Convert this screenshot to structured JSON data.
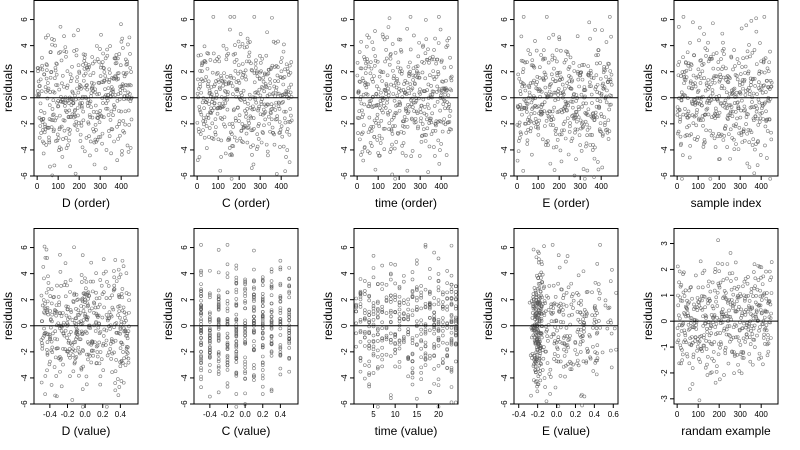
{
  "chart_data": [
    {
      "type": "scatter",
      "xlabel": "D (order)",
      "ylabel": "residuals",
      "xlim": [
        -15,
        480
      ],
      "ylim": [
        -6,
        7.5
      ],
      "xticks": [
        0,
        100,
        200,
        300,
        400
      ],
      "xtick_labels": [
        "0",
        "100",
        "200",
        "300",
        "400"
      ],
      "yticks": [
        -6,
        -4,
        -2,
        0,
        2,
        4,
        6
      ],
      "ytick_labels": [
        "-6",
        "-4",
        "-2",
        "0",
        "2",
        "4",
        "6"
      ],
      "reference_line_y": 0,
      "n_points": 450,
      "x_pattern": "index",
      "y_sd": 2.3,
      "seed": 11
    },
    {
      "type": "scatter",
      "xlabel": "C (order)",
      "ylabel": "residuals",
      "xlim": [
        -15,
        480
      ],
      "ylim": [
        -6,
        7.5
      ],
      "xticks": [
        0,
        100,
        200,
        300,
        400
      ],
      "xtick_labels": [
        "0",
        "100",
        "200",
        "300",
        "400"
      ],
      "yticks": [
        -6,
        -4,
        -2,
        0,
        2,
        4,
        6
      ],
      "ytick_labels": [
        "-6",
        "-4",
        "-2",
        "0",
        "2",
        "4",
        "6"
      ],
      "reference_line_y": 0,
      "n_points": 450,
      "x_pattern": "index",
      "y_sd": 2.3,
      "seed": 12
    },
    {
      "type": "scatter",
      "xlabel": "time (order)",
      "ylabel": "residuals",
      "xlim": [
        -15,
        480
      ],
      "ylim": [
        -6,
        7.5
      ],
      "xticks": [
        0,
        100,
        200,
        300,
        400
      ],
      "xtick_labels": [
        "0",
        "100",
        "200",
        "300",
        "400"
      ],
      "yticks": [
        -6,
        -4,
        -2,
        0,
        2,
        4,
        6
      ],
      "ytick_labels": [
        "-6",
        "-4",
        "-2",
        "0",
        "2",
        "4",
        "6"
      ],
      "reference_line_y": 0,
      "n_points": 450,
      "x_pattern": "index",
      "y_sd": 2.3,
      "seed": 13
    },
    {
      "type": "scatter",
      "xlabel": "E (order)",
      "ylabel": "residuals",
      "xlim": [
        -15,
        480
      ],
      "ylim": [
        -6,
        7.5
      ],
      "xticks": [
        0,
        100,
        200,
        300,
        400
      ],
      "xtick_labels": [
        "0",
        "100",
        "200",
        "300",
        "400"
      ],
      "yticks": [
        -6,
        -4,
        -2,
        0,
        2,
        4,
        6
      ],
      "ytick_labels": [
        "-6",
        "-4",
        "-2",
        "0",
        "2",
        "4",
        "6"
      ],
      "reference_line_y": 0,
      "n_points": 450,
      "x_pattern": "index",
      "y_sd": 2.3,
      "seed": 14
    },
    {
      "type": "scatter",
      "xlabel": "sample index",
      "ylabel": "residuals",
      "xlim": [
        -15,
        480
      ],
      "ylim": [
        -6,
        7.5
      ],
      "xticks": [
        0,
        100,
        200,
        300,
        400
      ],
      "xtick_labels": [
        "0",
        "100",
        "200",
        "300",
        "400"
      ],
      "yticks": [
        -6,
        -4,
        -2,
        0,
        2,
        4,
        6
      ],
      "ytick_labels": [
        "-6",
        "-4",
        "-2",
        "0",
        "2",
        "4",
        "6"
      ],
      "reference_line_y": 0,
      "n_points": 450,
      "x_pattern": "index",
      "y_sd": 2.3,
      "seed": 15
    },
    {
      "type": "scatter",
      "xlabel": "D (value)",
      "ylabel": "residuals",
      "xlim": [
        -0.58,
        0.6
      ],
      "ylim": [
        -6,
        7.5
      ],
      "xticks": [
        -0.4,
        -0.2,
        0.0,
        0.2,
        0.4
      ],
      "xtick_labels": [
        "-0.4",
        "-0.2",
        "0.0",
        "0.2",
        "0.4"
      ],
      "yticks": [
        -6,
        -4,
        -2,
        0,
        2,
        4,
        6
      ],
      "ytick_labels": [
        "-6",
        "-4",
        "-2",
        "0",
        "2",
        "4",
        "6"
      ],
      "reference_line_y": 0,
      "n_points": 450,
      "x_pattern": "uniform",
      "x_range": [
        -0.5,
        0.5
      ],
      "y_sd": 2.3,
      "seed": 21
    },
    {
      "type": "scatter",
      "xlabel": "C (value)",
      "ylabel": "residuals",
      "xlim": [
        -0.58,
        0.6
      ],
      "ylim": [
        -6,
        7.5
      ],
      "xticks": [
        -0.4,
        -0.2,
        0.0,
        0.2,
        0.4
      ],
      "xtick_labels": [
        "-0.4",
        "-0.2",
        "0.0",
        "0.2",
        "0.4"
      ],
      "yticks": [
        -6,
        -4,
        -2,
        0,
        2,
        4,
        6
      ],
      "ytick_labels": [
        "-6",
        "-4",
        "-2",
        "0",
        "2",
        "4",
        "6"
      ],
      "reference_line_y": 0,
      "n_points": 450,
      "x_pattern": "discrete",
      "x_levels": [
        -0.5,
        -0.4,
        -0.3,
        -0.2,
        -0.1,
        0.0,
        0.1,
        0.2,
        0.3,
        0.4,
        0.5
      ],
      "y_sd": 2.3,
      "seed": 22
    },
    {
      "type": "scatter",
      "xlabel": "time (value)",
      "ylabel": "residuals",
      "xlim": [
        0.5,
        24.5
      ],
      "ylim": [
        -6,
        7.5
      ],
      "xticks": [
        5,
        10,
        15,
        20
      ],
      "xtick_labels": [
        "5",
        "10",
        "15",
        "20"
      ],
      "yticks": [
        -6,
        -4,
        -2,
        0,
        2,
        4,
        6
      ],
      "ytick_labels": [
        "-6",
        "-4",
        "-2",
        "0",
        "2",
        "4",
        "6"
      ],
      "reference_line_y": 0,
      "n_points": 450,
      "x_pattern": "discrete",
      "x_levels": [
        1,
        2,
        3,
        4,
        5,
        6,
        7,
        8,
        9,
        10,
        11,
        12,
        13,
        14,
        15,
        16,
        17,
        18,
        19,
        20,
        21,
        22,
        23,
        24
      ],
      "y_sd": 2.3,
      "seed": 23
    },
    {
      "type": "scatter",
      "xlabel": "E (value)",
      "ylabel": "residuals",
      "xlim": [
        -0.45,
        0.65
      ],
      "ylim": [
        -6,
        7.5
      ],
      "xticks": [
        -0.4,
        -0.2,
        0.0,
        0.2,
        0.4,
        0.6
      ],
      "xtick_labels": [
        "-0.4",
        "-0.2",
        "0.0",
        "0.2",
        "0.4",
        "0.6"
      ],
      "yticks": [
        -6,
        -4,
        -2,
        0,
        2,
        4,
        6
      ],
      "ytick_labels": [
        "-6",
        "-4",
        "-2",
        "0",
        "2",
        "4",
        "6"
      ],
      "reference_line_y": 0,
      "n_points": 450,
      "x_pattern": "clustered",
      "x_clusters": [
        {
          "center": -0.2,
          "sd": 0.03,
          "weight": 0.5
        },
        {
          "center": 0.0,
          "sd": 0.08,
          "weight": 0.2
        },
        {
          "center": 0.3,
          "sd": 0.15,
          "weight": 0.3
        }
      ],
      "y_sd": 2.3,
      "seed": 24
    },
    {
      "type": "scatter",
      "xlabel": "randam example",
      "ylabel": "residuals",
      "xlim": [
        -15,
        480
      ],
      "ylim": [
        -3.2,
        3.6
      ],
      "xticks": [
        0,
        100,
        200,
        300,
        400
      ],
      "xtick_labels": [
        "0",
        "100",
        "200",
        "300",
        "400"
      ],
      "yticks": [
        -3,
        -2,
        -1,
        0,
        1,
        2,
        3
      ],
      "ytick_labels": [
        "-3",
        "-2",
        "-1",
        "0",
        "1",
        "2",
        "3"
      ],
      "reference_line_y": 0,
      "n_points": 450,
      "x_pattern": "index",
      "y_sd": 1.0,
      "seed": 25
    }
  ],
  "colors": {
    "point": "#555555",
    "axis": "#000000",
    "refline": "#000000"
  }
}
